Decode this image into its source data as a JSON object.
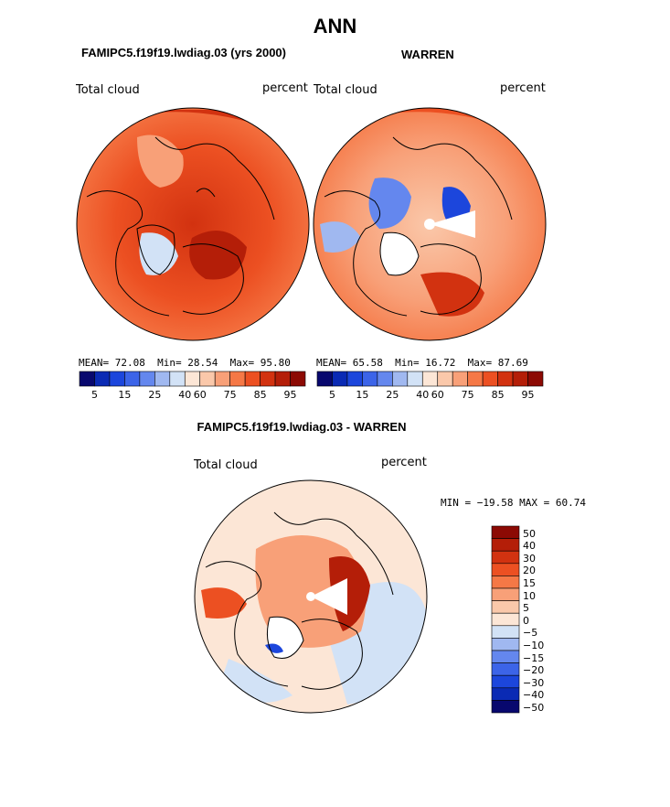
{
  "page_title": "ANN",
  "panels": {
    "left": {
      "subtitle": "FAMIPC5.f19f19.lwdiag.03 (yrs 2000)",
      "variable": "Total cloud",
      "units": "percent",
      "stats": {
        "mean_label": "MEAN=",
        "mean": "72.08",
        "min_label": "Min=",
        "min": "28.54",
        "max_label": "Max=",
        "max": "95.80"
      }
    },
    "right": {
      "subtitle": "WARREN",
      "variable": "Total cloud",
      "units": "percent",
      "stats": {
        "mean_label": "MEAN=",
        "mean": "65.58",
        "min_label": "Min=",
        "min": "16.72",
        "max_label": "Max=",
        "max": "87.69"
      }
    },
    "diff": {
      "subtitle": "FAMIPC5.f19f19.lwdiag.03 - WARREN",
      "variable": "Total cloud",
      "units": "percent",
      "minmax": "MIN = −19.58 MAX =  60.74"
    }
  },
  "colorbar_top": {
    "colors": [
      "#08086e",
      "#0a2ab4",
      "#1c46dc",
      "#3c64e8",
      "#6487ee",
      "#a0b8f0",
      "#d2e2f6",
      "#fce6d6",
      "#fac8aa",
      "#f8a078",
      "#f57846",
      "#ec5022",
      "#d23210",
      "#b41e08",
      "#8c0a04"
    ],
    "labels": [
      "5",
      "15",
      "25",
      "40",
      "60",
      "75",
      "85",
      "95"
    ]
  },
  "colorbar_diff": {
    "colors": [
      "#8c0a04",
      "#b41e08",
      "#d23210",
      "#ec5022",
      "#f57846",
      "#f8a078",
      "#fac8aa",
      "#fce6d6",
      "#d2e2f6",
      "#a0b8f0",
      "#6487ee",
      "#3c64e8",
      "#1c46dc",
      "#0a2ab4",
      "#08086e"
    ],
    "labels": [
      "50",
      "40",
      "30",
      "20",
      "15",
      "10",
      "5",
      "0",
      "−5",
      "−10",
      "−15",
      "−20",
      "−30",
      "−40",
      "−50"
    ]
  }
}
